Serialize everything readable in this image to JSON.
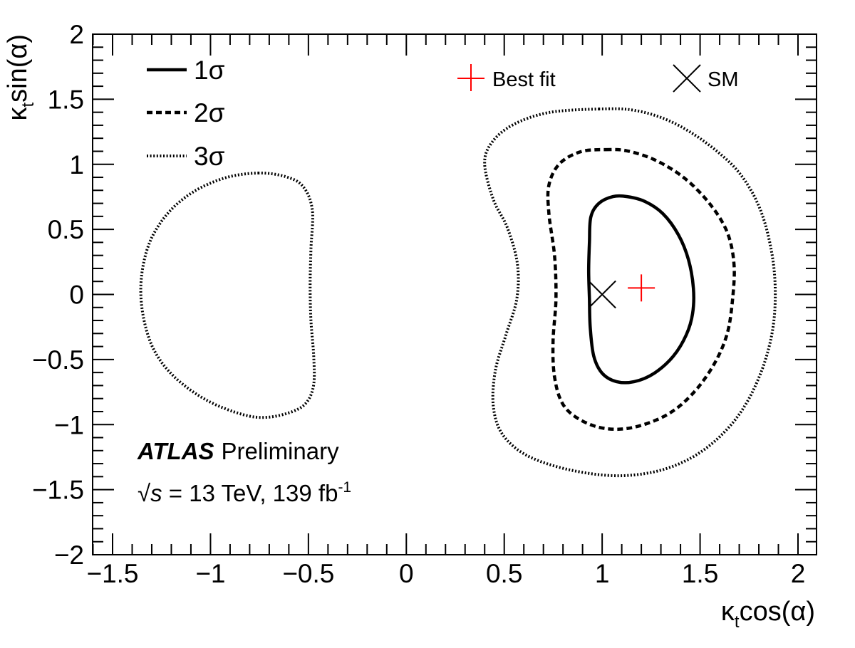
{
  "chart_data": {
    "type": "line",
    "title": "",
    "xlabel": {
      "main": "κ",
      "sub": "t",
      "rest": "cos(α)"
    },
    "ylabel": {
      "main": "κ",
      "sub": "t",
      "rest": "sin(α)"
    },
    "xlim": [
      -1.6,
      2.1
    ],
    "ylim": [
      -2,
      2
    ],
    "grid": false,
    "x_ticks": [
      {
        "value": -1.5,
        "label": "−1.5"
      },
      {
        "value": -1,
        "label": "−1"
      },
      {
        "value": -0.5,
        "label": "−0.5"
      },
      {
        "value": 0,
        "label": "0"
      },
      {
        "value": 0.5,
        "label": "0.5"
      },
      {
        "value": 1,
        "label": "1"
      },
      {
        "value": 1.5,
        "label": "1.5"
      },
      {
        "value": 2,
        "label": "2"
      }
    ],
    "y_ticks": [
      {
        "value": 2,
        "label": "2"
      },
      {
        "value": 1.5,
        "label": "1.5"
      },
      {
        "value": 1,
        "label": "1"
      },
      {
        "value": 0.5,
        "label": "0.5"
      },
      {
        "value": 0,
        "label": "0"
      },
      {
        "value": -0.5,
        "label": "−0.5"
      },
      {
        "value": -1,
        "label": "−1"
      },
      {
        "value": -1.5,
        "label": "−1.5"
      },
      {
        "value": -2,
        "label": "−2"
      }
    ],
    "legend": {
      "placement": "top-left",
      "entries": [
        {
          "id": "1sigma",
          "label": "1σ",
          "style": "solid"
        },
        {
          "id": "2sigma",
          "label": "2σ",
          "style": "dashed"
        },
        {
          "id": "3sigma",
          "label": "3σ",
          "style": "dotted"
        }
      ]
    },
    "markers": [
      {
        "id": "best-fit",
        "label": "Best fit",
        "x": 1.2,
        "y": 0.05,
        "shape": "plus",
        "color": "#ff0000"
      },
      {
        "id": "sm",
        "label": "SM",
        "x": 1.0,
        "y": 0.0,
        "shape": "cross",
        "color": "#000000"
      }
    ],
    "series": [
      {
        "name": "1σ",
        "style": "solid",
        "color": "#000000",
        "contours": [
          [
            [
              1.055,
              0.752
            ],
            [
              1.128,
              0.752
            ],
            [
              1.219,
              0.714
            ],
            [
              1.31,
              0.621
            ],
            [
              1.39,
              0.457
            ],
            [
              1.441,
              0.265
            ],
            [
              1.466,
              0.047
            ],
            [
              1.462,
              -0.145
            ],
            [
              1.43,
              -0.309
            ],
            [
              1.364,
              -0.473
            ],
            [
              1.266,
              -0.605
            ],
            [
              1.164,
              -0.67
            ],
            [
              1.073,
              -0.67
            ],
            [
              1.0,
              -0.605
            ],
            [
              0.957,
              -0.473
            ],
            [
              0.939,
              -0.254
            ],
            [
              0.935,
              -0.036
            ],
            [
              0.931,
              0.183
            ],
            [
              0.935,
              0.402
            ],
            [
              0.942,
              0.594
            ],
            [
              0.982,
              0.698
            ]
          ]
        ]
      },
      {
        "name": "2σ",
        "style": "dashed",
        "color": "#000000",
        "contours": [
          [
            [
              1.019,
              1.113
            ],
            [
              1.128,
              1.103
            ],
            [
              1.273,
              1.031
            ],
            [
              1.419,
              0.895
            ],
            [
              1.546,
              0.703
            ],
            [
              1.637,
              0.484
            ],
            [
              1.673,
              0.238
            ],
            [
              1.666,
              -0.036
            ],
            [
              1.637,
              -0.309
            ],
            [
              1.564,
              -0.555
            ],
            [
              1.455,
              -0.774
            ],
            [
              1.328,
              -0.927
            ],
            [
              1.164,
              -1.02
            ],
            [
              1.019,
              -1.031
            ],
            [
              0.891,
              -0.966
            ],
            [
              0.8,
              -0.845
            ],
            [
              0.757,
              -0.637
            ],
            [
              0.749,
              -0.364
            ],
            [
              0.764,
              -0.036
            ],
            [
              0.757,
              0.293
            ],
            [
              0.728,
              0.621
            ],
            [
              0.728,
              0.84
            ],
            [
              0.782,
              1.004
            ],
            [
              0.891,
              1.097
            ]
          ]
        ]
      },
      {
        "name": "3σ",
        "style": "dotted",
        "color": "#000000",
        "contours": [
          [
            [
              0.982,
              1.425
            ],
            [
              1.164,
              1.415
            ],
            [
              1.346,
              1.332
            ],
            [
              1.528,
              1.168
            ],
            [
              1.692,
              0.949
            ],
            [
              1.801,
              0.676
            ],
            [
              1.863,
              0.347
            ],
            [
              1.884,
              0.019
            ],
            [
              1.866,
              -0.309
            ],
            [
              1.801,
              -0.637
            ],
            [
              1.692,
              -0.938
            ],
            [
              1.528,
              -1.185
            ],
            [
              1.328,
              -1.338
            ],
            [
              1.091,
              -1.393
            ],
            [
              0.837,
              -1.349
            ],
            [
              0.618,
              -1.239
            ],
            [
              0.491,
              -1.075
            ],
            [
              0.444,
              -0.856
            ],
            [
              0.455,
              -0.582
            ],
            [
              0.509,
              -0.309
            ],
            [
              0.564,
              -0.036
            ],
            [
              0.567,
              0.238
            ],
            [
              0.516,
              0.512
            ],
            [
              0.444,
              0.731
            ],
            [
              0.4,
              1.004
            ],
            [
              0.437,
              1.168
            ],
            [
              0.546,
              1.305
            ],
            [
              0.728,
              1.398
            ]
          ],
          [
            [
              -0.757,
              0.933
            ],
            [
              -0.618,
              0.906
            ],
            [
              -0.527,
              0.829
            ],
            [
              -0.48,
              0.648
            ],
            [
              -0.487,
              0.347
            ],
            [
              -0.491,
              0.074
            ],
            [
              -0.487,
              -0.2
            ],
            [
              -0.473,
              -0.473
            ],
            [
              -0.473,
              -0.692
            ],
            [
              -0.509,
              -0.829
            ],
            [
              -0.582,
              -0.9
            ],
            [
              -0.709,
              -0.944
            ],
            [
              -0.837,
              -0.922
            ],
            [
              -1.019,
              -0.813
            ],
            [
              -1.182,
              -0.637
            ],
            [
              -1.291,
              -0.419
            ],
            [
              -1.346,
              -0.145
            ],
            [
              -1.353,
              0.129
            ],
            [
              -1.31,
              0.402
            ],
            [
              -1.219,
              0.621
            ],
            [
              -1.091,
              0.785
            ],
            [
              -0.927,
              0.895
            ]
          ]
        ]
      }
    ],
    "annotations": [
      {
        "id": "experiment",
        "bold_italic": "ATLAS",
        "normal": "Preliminary"
      },
      {
        "id": "energy",
        "sqrt": "√",
        "var": "s",
        "text": " = 13 TeV, 139 fb",
        "sup": "-1"
      }
    ]
  }
}
